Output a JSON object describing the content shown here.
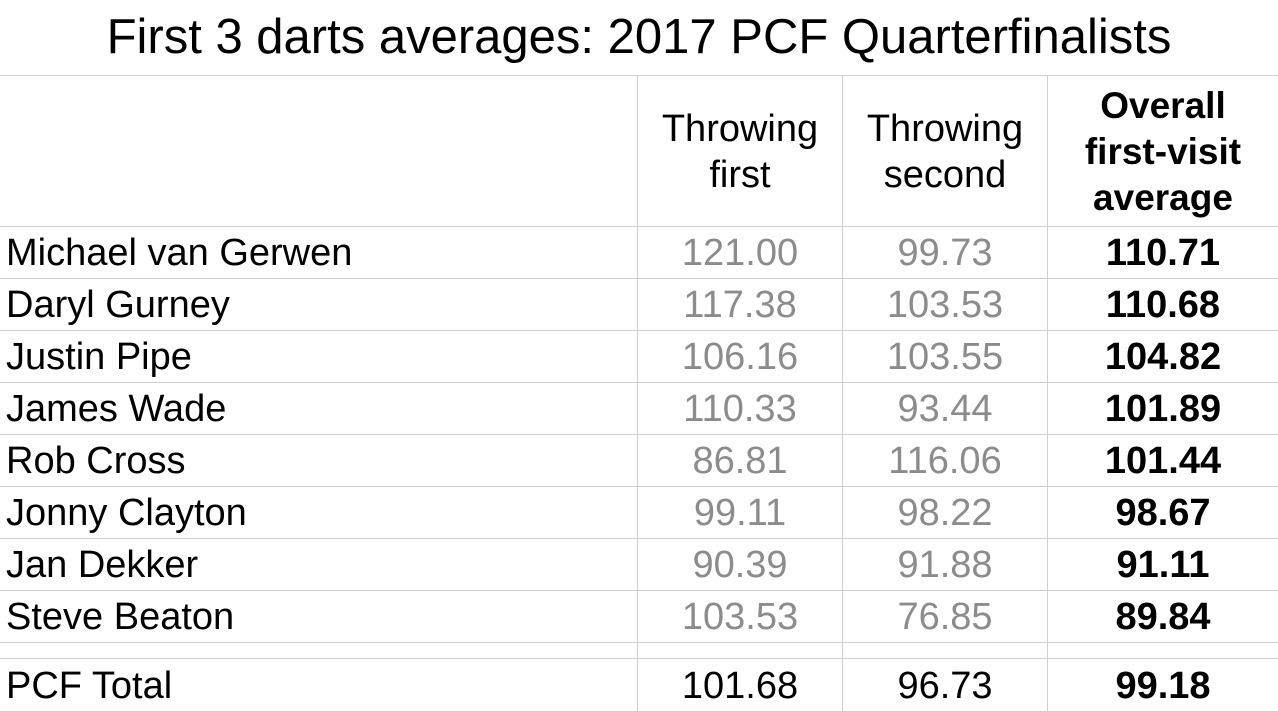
{
  "chart_data": {
    "type": "table",
    "title": "First 3 darts averages: 2017 PCF Quarterfinalists",
    "columns": [
      "",
      "Throwing first",
      "Throwing second",
      "Overall first-visit average"
    ],
    "column_lines": {
      "c1": [
        "Throwing",
        "first"
      ],
      "c2": [
        "Throwing",
        "second"
      ],
      "c3": [
        "Overall",
        "first-visit",
        "average"
      ]
    },
    "rows": [
      {
        "name": "Michael van Gerwen",
        "first": "121.00",
        "second": "99.73",
        "overall": "110.71"
      },
      {
        "name": "Daryl Gurney",
        "first": "117.38",
        "second": "103.53",
        "overall": "110.68"
      },
      {
        "name": "Justin Pipe",
        "first": "106.16",
        "second": "103.55",
        "overall": "104.82"
      },
      {
        "name": "James Wade",
        "first": "110.33",
        "second": "93.44",
        "overall": "101.89"
      },
      {
        "name": "Rob Cross",
        "first": "86.81",
        "second": "116.06",
        "overall": "101.44"
      },
      {
        "name": "Jonny Clayton",
        "first": "99.11",
        "second": "98.22",
        "overall": "98.67"
      },
      {
        "name": "Jan Dekker",
        "first": "90.39",
        "second": "91.88",
        "overall": "91.11"
      },
      {
        "name": "Steve Beaton",
        "first": "103.53",
        "second": "76.85",
        "overall": "89.84"
      }
    ],
    "total": {
      "name": "PCF Total",
      "first": "101.68",
      "second": "96.73",
      "overall": "99.18"
    },
    "colors": {
      "player_values": "#8c8c8c",
      "overall": "#000000",
      "gridlines": "#cfcfcf"
    }
  }
}
